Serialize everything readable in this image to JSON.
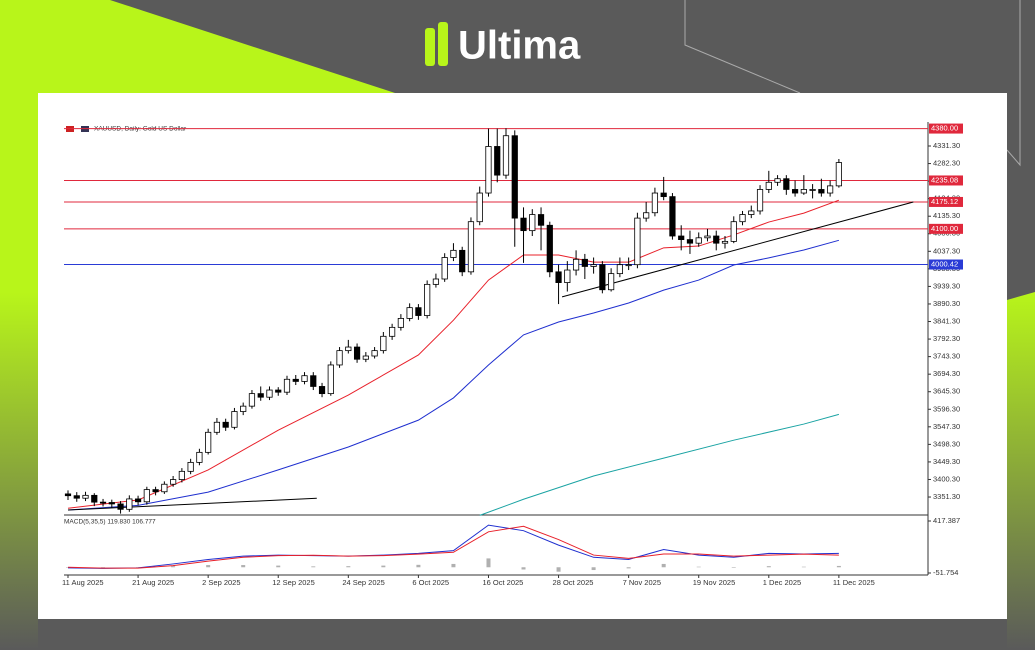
{
  "brand": {
    "name": "Ultima"
  },
  "chart_data": {
    "type": "candlestick",
    "title": "XAUUSD, Daily: Gold US Dollar",
    "categories": [
      "11 Aug 2025",
      null,
      null,
      null,
      null,
      null,
      null,
      null,
      "21 Aug 2025",
      null,
      null,
      null,
      null,
      null,
      null,
      null,
      "2 Sep 2025",
      null,
      null,
      null,
      null,
      null,
      null,
      null,
      "12 Sep 2025",
      null,
      null,
      null,
      null,
      null,
      null,
      null,
      "24 Sep 2025",
      null,
      null,
      null,
      null,
      null,
      null,
      null,
      "6 Oct 2025",
      null,
      null,
      null,
      null,
      null,
      null,
      null,
      "16 Oct 2025",
      null,
      null,
      null,
      null,
      null,
      null,
      null,
      "28 Oct 2025",
      null,
      null,
      null,
      null,
      null,
      null,
      null,
      "7 Nov 2025",
      null,
      null,
      null,
      null,
      null,
      null,
      null,
      "19 Nov 2025",
      null,
      null,
      null,
      null,
      null,
      null,
      null,
      "1 Dec 2025",
      null,
      null,
      null,
      null,
      null,
      null,
      null,
      "11 Dec 2025"
    ],
    "open": [
      3360,
      3355,
      3348,
      3356,
      3337,
      3336,
      3332,
      3317,
      3346,
      3338,
      3372,
      3366,
      3387,
      3400,
      3423,
      3448,
      3476,
      3532,
      3560,
      3546,
      3590,
      3605,
      3640,
      3630,
      3650,
      3644,
      3680,
      3674,
      3690,
      3660,
      3640,
      3720,
      3760,
      3770,
      3736,
      3745,
      3760,
      3800,
      3825,
      3850,
      3880,
      3858,
      3945,
      3960,
      4020,
      4040,
      3980,
      4120,
      4200,
      4330,
      4250,
      4360,
      4130,
      4095,
      4140,
      4110,
      3980,
      3950,
      3985,
      4015,
      3995,
      4000,
      3930,
      3975,
      4000,
      4000,
      4130,
      4145,
      4200,
      4190,
      4080,
      4070,
      4060,
      4075,
      4080,
      4060,
      4065,
      4120,
      4140,
      4150,
      4210,
      4230,
      4240,
      4210,
      4200,
      4210,
      4210,
      4200,
      4220
    ],
    "high": [
      3370,
      3365,
      3366,
      3362,
      3346,
      3344,
      3340,
      3356,
      3355,
      3380,
      3380,
      3395,
      3410,
      3432,
      3458,
      3486,
      3542,
      3572,
      3570,
      3600,
      3615,
      3650,
      3660,
      3660,
      3658,
      3690,
      3692,
      3700,
      3700,
      3670,
      3730,
      3770,
      3790,
      3780,
      3756,
      3770,
      3812,
      3835,
      3862,
      3892,
      3890,
      3956,
      3975,
      4032,
      4060,
      4050,
      4132,
      4218,
      4380,
      4380,
      4381,
      4375,
      4160,
      4155,
      4160,
      4120,
      4000,
      4010,
      4040,
      4030,
      4020,
      4010,
      3990,
      4020,
      4020,
      4145,
      4175,
      4215,
      4245,
      4200,
      4110,
      4095,
      4090,
      4100,
      4095,
      4080,
      4135,
      4150,
      4165,
      4222,
      4262,
      4250,
      4250,
      4235,
      4250,
      4225,
      4240,
      4235,
      4295
    ],
    "low": [
      3343,
      3338,
      3340,
      3326,
      3325,
      3322,
      3305,
      3310,
      3328,
      3330,
      3356,
      3360,
      3380,
      3392,
      3415,
      3440,
      3470,
      3525,
      3536,
      3540,
      3580,
      3598,
      3620,
      3622,
      3634,
      3636,
      3664,
      3666,
      3650,
      3630,
      3634,
      3712,
      3752,
      3726,
      3728,
      3738,
      3752,
      3790,
      3816,
      3842,
      3846,
      3850,
      3936,
      3952,
      4010,
      3968,
      3972,
      4110,
      4190,
      4230,
      4240,
      4050,
      4005,
      4080,
      4040,
      3965,
      3890,
      3925,
      3970,
      3960,
      3975,
      3920,
      3925,
      3965,
      3985,
      3990,
      4120,
      4135,
      4180,
      4070,
      4040,
      4030,
      4050,
      4065,
      4040,
      4045,
      4060,
      4110,
      4130,
      4140,
      4200,
      4220,
      4195,
      4190,
      4195,
      4185,
      4190,
      4190,
      4215
    ],
    "close": [
      3355,
      3348,
      3356,
      3337,
      3336,
      3332,
      3317,
      3346,
      3338,
      3372,
      3366,
      3387,
      3400,
      3423,
      3448,
      3476,
      3532,
      3560,
      3546,
      3590,
      3605,
      3640,
      3630,
      3650,
      3644,
      3680,
      3674,
      3690,
      3660,
      3640,
      3720,
      3760,
      3770,
      3736,
      3745,
      3760,
      3800,
      3825,
      3850,
      3880,
      3858,
      3945,
      3960,
      4020,
      4040,
      3980,
      4120,
      4200,
      4330,
      4250,
      4360,
      4130,
      4095,
      4140,
      4110,
      3980,
      3950,
      3985,
      4015,
      3995,
      4000,
      3930,
      3975,
      4000,
      4000,
      4130,
      4145,
      4200,
      4190,
      4080,
      4070,
      4060,
      4075,
      4080,
      4060,
      4065,
      4120,
      4140,
      4150,
      4210,
      4230,
      4240,
      4210,
      4200,
      4210,
      4210,
      4200,
      4220,
      4285
    ],
    "up_color": "#ffffff",
    "down_color": "#000000",
    "ylim": [
      3300,
      4400
    ],
    "yticks": [
      {
        "value": 3351.3,
        "label": "3351.30"
      },
      {
        "value": 3400.3,
        "label": "3400.30"
      },
      {
        "value": 3449.3,
        "label": "3449.30"
      },
      {
        "value": 3498.3,
        "label": "3498.30"
      },
      {
        "value": 3547.3,
        "label": "3547.30"
      },
      {
        "value": 3596.3,
        "label": "3596.30"
      },
      {
        "value": 3645.3,
        "label": "3645.30"
      },
      {
        "value": 3694.3,
        "label": "3694.30"
      },
      {
        "value": 3743.3,
        "label": "3743.30"
      },
      {
        "value": 3792.3,
        "label": "3792.30"
      },
      {
        "value": 3841.3,
        "label": "3841.30"
      },
      {
        "value": 3890.3,
        "label": "3890.30"
      },
      {
        "value": 3939.3,
        "label": "3939.30"
      },
      {
        "value": 3988.3,
        "label": "3988.30"
      },
      {
        "value": 4037.3,
        "label": "4037.30"
      },
      {
        "value": 4086.3,
        "label": "4086.30"
      },
      {
        "value": 4135.3,
        "label": "4135.30"
      },
      {
        "value": 4184.3,
        "label": "4184.30"
      },
      {
        "value": 4233.3,
        "label": "4233.30"
      },
      {
        "value": 4282.3,
        "label": "4282.30"
      },
      {
        "value": 4331.3,
        "label": "4331.30"
      }
    ],
    "moving_averages": [
      {
        "color": "#e8202a",
        "x": [
          0,
          8,
          16,
          24,
          32,
          40,
          44,
          48,
          52,
          56,
          60,
          64,
          68,
          72,
          76,
          80,
          84,
          88
        ],
        "values": [
          3320,
          3343,
          3427,
          3538,
          3636,
          3748,
          3845,
          3957,
          4027,
          4027,
          4007,
          4007,
          4047,
          4052,
          4083,
          4119,
          4144,
          4180
        ]
      },
      {
        "color": "#1f2fcf",
        "x": [
          0,
          8,
          16,
          24,
          32,
          40,
          44,
          48,
          52,
          56,
          60,
          64,
          68,
          72,
          76,
          80,
          84,
          88
        ],
        "values": [
          3315,
          3328,
          3365,
          3427,
          3491,
          3566,
          3628,
          3720,
          3804,
          3840,
          3865,
          3893,
          3929,
          3957,
          3999,
          4019,
          4041,
          4068
        ]
      },
      {
        "color": "#1aa3a3",
        "x": [
          47,
          52,
          60,
          68,
          76,
          84,
          88
        ],
        "values": [
          3300,
          3345,
          3410,
          3460,
          3510,
          3555,
          3582
        ]
      }
    ],
    "trendlines": [
      {
        "color": "#000000",
        "x": [
          0,
          28.4
        ],
        "values": [
          3315,
          3348
        ]
      },
      {
        "color": "#000000",
        "x": [
          56.4,
          96.5
        ],
        "values": [
          3910,
          4175
        ]
      }
    ],
    "levels": {
      "values": [
        4380,
        4235.08,
        4175.12,
        4100,
        4000.42
      ],
      "value_labels": [
        "4380.00",
        "4235.08",
        "4175.12",
        "4100.00",
        "4000.42"
      ],
      "colors": [
        "#e0283c",
        "#e0283c",
        "#e0283c",
        "#e0283c",
        "#2a3bd6"
      ]
    },
    "macd": {
      "title": "MACD(5,35,5) 119.830 106.777",
      "ylim": [
        -51.754,
        417.387
      ],
      "yticks": [
        -51.754,
        417.387
      ],
      "x": [
        0,
        4,
        8,
        12,
        16,
        20,
        24,
        28,
        32,
        36,
        40,
        44,
        48,
        52,
        56,
        60,
        64,
        68,
        72,
        76,
        80,
        84,
        88
      ],
      "histogram_color": "#b0b0b0",
      "histogram": [
        -2,
        -5,
        -3,
        10,
        20,
        20,
        15,
        8,
        10,
        15,
        22,
        30,
        80,
        -20,
        -40,
        -25,
        -10,
        30,
        5,
        -5,
        10,
        5,
        12
      ],
      "macd": {
        "color": "#1f2fcf",
        "values": [
          -5,
          -10,
          -5,
          30,
          70,
          100,
          110,
          105,
          100,
          110,
          125,
          150,
          380,
          330,
          200,
          90,
          70,
          160,
          110,
          90,
          125,
          120,
          125
        ]
      },
      "signal": {
        "color": "#e8202a",
        "values": [
          0,
          -8,
          -8,
          15,
          55,
          90,
          105,
          108,
          100,
          105,
          118,
          135,
          320,
          370,
          250,
          110,
          80,
          120,
          120,
          100,
          110,
          118,
          110
        ]
      }
    }
  }
}
